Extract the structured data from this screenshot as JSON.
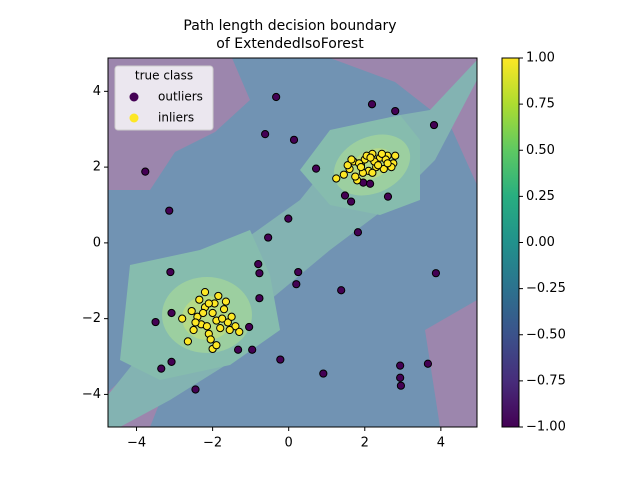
{
  "chart_data": {
    "type": "scatter",
    "title": [
      "Path length decision boundary",
      "of ExtendedIsoForest"
    ],
    "xlim": [
      -4.75,
      4.95
    ],
    "ylim": [
      -4.86,
      4.88
    ],
    "xticks": [
      {
        "value": -4,
        "label": "−4"
      },
      {
        "value": -2,
        "label": "−2"
      },
      0,
      2,
      4
    ],
    "yticks": [
      {
        "value": -4,
        "label": "−4"
      },
      {
        "value": -2,
        "label": "−2"
      },
      0,
      2,
      4
    ],
    "legend": {
      "title": "true class",
      "loc": "upper left"
    },
    "colorbar": {
      "lim": [
        -1,
        1
      ],
      "ticks": [
        {
          "value": -1,
          "label": "−1.00"
        },
        {
          "value": -0.75,
          "label": "−0.75"
        },
        {
          "value": -0.5,
          "label": "−0.50"
        },
        {
          "value": -0.25,
          "label": "−0.25"
        },
        {
          "value": 0,
          "label": "0.00"
        },
        {
          "value": 0.25,
          "label": "0.25"
        },
        {
          "value": 0.5,
          "label": "0.50"
        },
        {
          "value": 0.75,
          "label": "0.75"
        },
        {
          "value": 1,
          "label": "1.00"
        }
      ]
    },
    "series": [
      {
        "name": "outliers",
        "color": "#440154",
        "x": [
          -3.77,
          -3.14,
          -0.33,
          2.19,
          2.8,
          3.82,
          -0.62,
          0.14,
          0.72,
          2.61,
          1.64,
          1.48,
          -0.01,
          -0.54,
          1.82,
          3.87,
          -0.8,
          -0.77,
          -3.11,
          0.25,
          0.2,
          1.38,
          -0.77,
          -3.08,
          -3.5,
          -1.04,
          -1.33,
          -0.96,
          -3.08,
          -3.35,
          -0.22,
          0.91,
          -2.45,
          2.93,
          3.66,
          2.93,
          2.95,
          1.96,
          2.14
        ],
        "y": [
          1.88,
          0.85,
          3.85,
          3.66,
          3.48,
          3.11,
          2.87,
          2.72,
          1.96,
          1.22,
          1.09,
          1.25,
          0.64,
          0.14,
          0.28,
          -0.8,
          -0.56,
          -0.8,
          -0.77,
          -0.77,
          -1.09,
          -1.25,
          -1.46,
          -1.85,
          -2.09,
          -2.22,
          -2.82,
          -2.82,
          -3.14,
          -3.32,
          -3.08,
          -3.45,
          -3.87,
          -3.24,
          -3.19,
          -3.56,
          -3.77,
          1.59,
          1.56
        ]
      },
      {
        "name": "inliers",
        "color": "#fde725",
        "x": [
          1.25,
          1.45,
          1.6,
          1.7,
          1.8,
          1.9,
          2.0,
          2.1,
          2.2,
          2.3,
          2.4,
          2.5,
          2.6,
          2.75,
          2.8,
          1.55,
          1.75,
          1.95,
          2.05,
          2.25,
          2.35,
          2.55,
          2.7,
          1.65,
          1.85,
          2.15,
          2.45,
          2.2,
          1.9,
          2.6,
          -2.65,
          -2.5,
          -2.4,
          -2.3,
          -2.2,
          -2.1,
          -2.0,
          -1.9,
          -1.8,
          -1.7,
          -1.6,
          -1.5,
          -1.4,
          -2.55,
          -2.35,
          -2.15,
          -1.95,
          -1.75,
          -1.55,
          -2.45,
          -2.25,
          -2.05,
          -1.85,
          -1.65,
          -2.0,
          -1.9,
          -2.2,
          -2.8,
          -1.3,
          -2.1
        ],
        "y": [
          1.7,
          1.8,
          1.95,
          2.15,
          1.65,
          2.05,
          2.2,
          1.9,
          2.35,
          2.0,
          2.25,
          1.95,
          2.3,
          2.1,
          2.3,
          2.05,
          1.75,
          1.85,
          2.3,
          2.15,
          2.05,
          2.2,
          2.0,
          2.2,
          2.1,
          2.25,
          2.35,
          1.85,
          2.0,
          2.1,
          -2.6,
          -2.3,
          -1.95,
          -2.15,
          -1.7,
          -2.4,
          -1.85,
          -2.05,
          -2.25,
          -1.75,
          -2.1,
          -1.95,
          -2.2,
          -1.8,
          -1.5,
          -2.2,
          -1.6,
          -2.0,
          -2.3,
          -2.1,
          -1.85,
          -2.55,
          -1.4,
          -1.55,
          -2.8,
          -2.7,
          -1.3,
          -2.0,
          -2.35,
          -1.6
        ]
      }
    ]
  }
}
